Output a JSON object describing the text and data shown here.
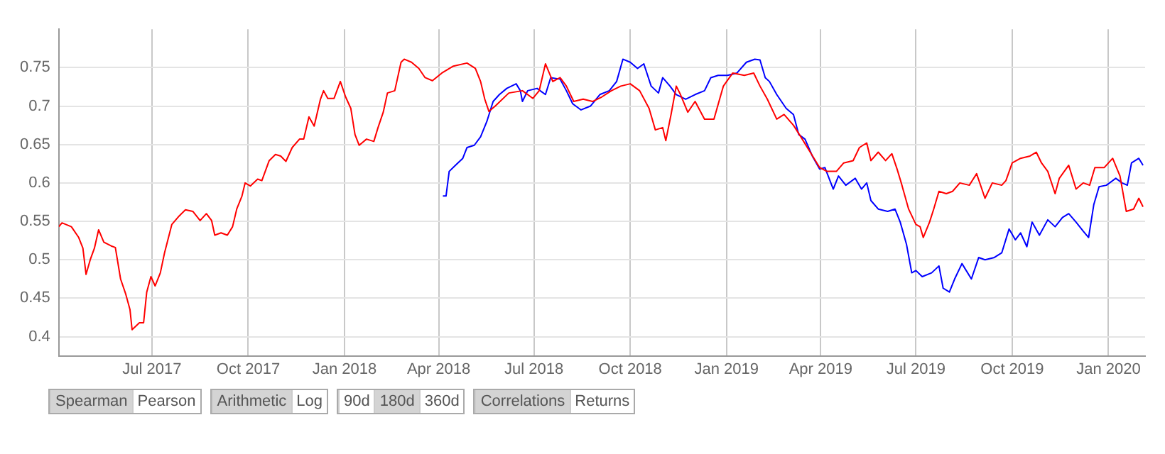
{
  "chart_data": {
    "type": "line",
    "xlim": [
      "2017-04-03",
      "2020-02-05"
    ],
    "ylim": [
      0.375,
      0.8
    ],
    "xticks": [
      {
        "value": "2017-07-01",
        "label": "Jul 2017"
      },
      {
        "value": "2017-10-01",
        "label": "Oct 2017"
      },
      {
        "value": "2018-01-01",
        "label": "Jan 2018"
      },
      {
        "value": "2018-04-01",
        "label": "Apr 2018"
      },
      {
        "value": "2018-07-01",
        "label": "Jul 2018"
      },
      {
        "value": "2018-10-01",
        "label": "Oct 2018"
      },
      {
        "value": "2019-01-01",
        "label": "Jan 2019"
      },
      {
        "value": "2019-04-01",
        "label": "Apr 2019"
      },
      {
        "value": "2019-07-01",
        "label": "Jul 2019"
      },
      {
        "value": "2019-10-01",
        "label": "Oct 2019"
      },
      {
        "value": "2020-01-01",
        "label": "Jan 2020"
      }
    ],
    "yticks": [
      0.4,
      0.45,
      0.5,
      0.55,
      0.6,
      0.65,
      0.7,
      0.75
    ],
    "grid": true,
    "legend": false,
    "marker": "none",
    "line_style": "solid",
    "annotations": [
      "Spearman",
      "Pearson",
      "Arithmetic",
      "Log",
      "90d",
      "180d",
      "360d",
      "Correlations",
      "Returns"
    ],
    "series": [
      {
        "color": "#ff0000",
        "x": [
          "2017-04-03",
          "2017-04-06",
          "2017-04-15",
          "2017-04-22",
          "2017-04-26",
          "2017-04-29",
          "2017-05-03",
          "2017-05-07",
          "2017-05-11",
          "2017-05-16",
          "2017-05-23",
          "2017-05-27",
          "2017-06-01",
          "2017-06-06",
          "2017-06-10",
          "2017-06-12",
          "2017-06-19",
          "2017-06-23",
          "2017-06-26",
          "2017-06-30",
          "2017-07-04",
          "2017-07-09",
          "2017-07-13",
          "2017-07-20",
          "2017-07-27",
          "2017-08-02",
          "2017-08-09",
          "2017-08-16",
          "2017-08-22",
          "2017-08-27",
          "2017-08-30",
          "2017-09-05",
          "2017-09-11",
          "2017-09-16",
          "2017-09-20",
          "2017-09-25",
          "2017-09-28",
          "2017-10-03",
          "2017-10-10",
          "2017-10-14",
          "2017-10-21",
          "2017-10-27",
          "2017-11-01",
          "2017-11-06",
          "2017-11-12",
          "2017-11-19",
          "2017-11-23",
          "2017-11-28",
          "2017-12-03",
          "2017-12-09",
          "2017-12-12",
          "2017-12-16",
          "2017-12-22",
          "2017-12-28",
          "2018-01-02",
          "2018-01-07",
          "2018-01-11",
          "2018-01-15",
          "2018-01-22",
          "2018-01-29",
          "2018-02-02",
          "2018-02-07",
          "2018-02-11",
          "2018-02-18",
          "2018-02-24",
          "2018-02-27",
          "2018-03-06",
          "2018-03-13",
          "2018-03-19",
          "2018-03-26",
          "2018-04-04",
          "2018-04-15",
          "2018-04-28",
          "2018-05-06",
          "2018-05-11",
          "2018-05-15",
          "2018-05-19",
          "2018-05-25",
          "2018-06-07",
          "2018-06-20",
          "2018-06-30",
          "2018-07-06",
          "2018-07-12",
          "2018-07-19",
          "2018-07-26",
          "2018-08-01",
          "2018-08-08",
          "2018-08-17",
          "2018-08-26",
          "2018-09-04",
          "2018-09-13",
          "2018-09-22",
          "2018-10-01",
          "2018-10-10",
          "2018-10-19",
          "2018-10-25",
          "2018-11-01",
          "2018-11-04",
          "2018-11-09",
          "2018-11-14",
          "2018-11-18",
          "2018-11-25",
          "2018-12-02",
          "2018-12-11",
          "2018-12-20",
          "2018-12-29",
          "2019-01-07",
          "2019-01-18",
          "2019-01-27",
          "2019-02-02",
          "2019-02-09",
          "2019-02-18",
          "2019-02-25",
          "2019-03-06",
          "2019-03-13",
          "2019-03-22",
          "2019-03-31",
          "2019-04-07",
          "2019-04-16",
          "2019-04-23",
          "2019-05-02",
          "2019-05-08",
          "2019-05-15",
          "2019-05-19",
          "2019-05-26",
          "2019-06-02",
          "2019-06-08",
          "2019-06-13",
          "2019-06-17",
          "2019-06-24",
          "2019-07-01",
          "2019-07-05",
          "2019-07-08",
          "2019-07-14",
          "2019-07-18",
          "2019-07-23",
          "2019-07-30",
          "2019-08-05",
          "2019-08-12",
          "2019-08-21",
          "2019-08-28",
          "2019-09-05",
          "2019-09-12",
          "2019-09-21",
          "2019-09-25",
          "2019-10-01",
          "2019-10-09",
          "2019-10-18",
          "2019-10-24",
          "2019-10-29",
          "2019-11-04",
          "2019-11-11",
          "2019-11-15",
          "2019-11-24",
          "2019-12-01",
          "2019-12-08",
          "2019-12-14",
          "2019-12-19",
          "2019-12-28",
          "2020-01-05",
          "2020-01-12",
          "2020-01-18",
          "2020-01-25",
          "2020-01-30",
          "2020-02-03"
        ],
        "values": [
          0.543,
          0.548,
          0.543,
          0.529,
          0.515,
          0.481,
          0.5,
          0.515,
          0.539,
          0.523,
          0.518,
          0.516,
          0.475,
          0.455,
          0.435,
          0.409,
          0.418,
          0.418,
          0.458,
          0.478,
          0.466,
          0.483,
          0.509,
          0.546,
          0.557,
          0.565,
          0.563,
          0.551,
          0.56,
          0.551,
          0.532,
          0.535,
          0.532,
          0.543,
          0.566,
          0.583,
          0.6,
          0.596,
          0.605,
          0.603,
          0.629,
          0.637,
          0.635,
          0.628,
          0.646,
          0.657,
          0.657,
          0.686,
          0.674,
          0.709,
          0.72,
          0.71,
          0.71,
          0.732,
          0.712,
          0.697,
          0.663,
          0.649,
          0.657,
          0.654,
          0.672,
          0.692,
          0.717,
          0.72,
          0.757,
          0.761,
          0.757,
          0.749,
          0.737,
          0.733,
          0.743,
          0.752,
          0.756,
          0.749,
          0.732,
          0.709,
          0.693,
          0.7,
          0.717,
          0.72,
          0.71,
          0.72,
          0.755,
          0.732,
          0.737,
          0.726,
          0.706,
          0.709,
          0.706,
          0.712,
          0.72,
          0.726,
          0.729,
          0.72,
          0.697,
          0.669,
          0.672,
          0.655,
          0.689,
          0.726,
          0.715,
          0.692,
          0.706,
          0.683,
          0.683,
          0.726,
          0.743,
          0.74,
          0.743,
          0.726,
          0.709,
          0.683,
          0.689,
          0.675,
          0.66,
          0.64,
          0.62,
          0.615,
          0.615,
          0.626,
          0.629,
          0.646,
          0.652,
          0.629,
          0.64,
          0.629,
          0.638,
          0.618,
          0.6,
          0.566,
          0.546,
          0.543,
          0.529,
          0.549,
          0.566,
          0.589,
          0.586,
          0.589,
          0.6,
          0.597,
          0.612,
          0.58,
          0.6,
          0.597,
          0.603,
          0.626,
          0.632,
          0.635,
          0.64,
          0.626,
          0.615,
          0.586,
          0.606,
          0.623,
          0.592,
          0.6,
          0.597,
          0.62,
          0.62,
          0.632,
          0.609,
          0.563,
          0.566,
          0.58,
          0.569
        ]
      },
      {
        "color": "#0000ff",
        "x": [
          "2018-04-05",
          "2018-04-08",
          "2018-04-11",
          "2018-04-17",
          "2018-04-24",
          "2018-04-28",
          "2018-05-05",
          "2018-05-11",
          "2018-05-17",
          "2018-05-23",
          "2018-05-29",
          "2018-06-05",
          "2018-06-14",
          "2018-06-18",
          "2018-06-20",
          "2018-06-25",
          "2018-07-04",
          "2018-07-12",
          "2018-07-17",
          "2018-07-26",
          "2018-08-01",
          "2018-08-07",
          "2018-08-15",
          "2018-08-24",
          "2018-09-02",
          "2018-09-11",
          "2018-09-18",
          "2018-09-24",
          "2018-10-01",
          "2018-10-08",
          "2018-10-14",
          "2018-10-21",
          "2018-10-28",
          "2018-11-01",
          "2018-11-08",
          "2018-11-14",
          "2018-11-23",
          "2018-12-02",
          "2018-12-11",
          "2018-12-17",
          "2018-12-24",
          "2019-01-02",
          "2019-01-11",
          "2019-01-20",
          "2019-01-28",
          "2019-02-02",
          "2019-02-07",
          "2019-02-11",
          "2019-02-18",
          "2019-02-27",
          "2019-03-06",
          "2019-03-11",
          "2019-03-17",
          "2019-03-24",
          "2019-03-31",
          "2019-04-05",
          "2019-04-13",
          "2019-04-18",
          "2019-04-25",
          "2019-05-04",
          "2019-05-10",
          "2019-05-15",
          "2019-05-19",
          "2019-05-26",
          "2019-06-04",
          "2019-06-11",
          "2019-06-16",
          "2019-06-22",
          "2019-06-27",
          "2019-07-01",
          "2019-07-07",
          "2019-07-16",
          "2019-07-23",
          "2019-07-27",
          "2019-08-02",
          "2019-08-07",
          "2019-08-14",
          "2019-08-23",
          "2019-08-30",
          "2019-09-05",
          "2019-09-14",
          "2019-09-21",
          "2019-09-28",
          "2019-10-04",
          "2019-10-09",
          "2019-10-15",
          "2019-10-20",
          "2019-10-27",
          "2019-11-04",
          "2019-11-11",
          "2019-11-18",
          "2019-11-24",
          "2019-12-01",
          "2019-12-08",
          "2019-12-13",
          "2019-12-18",
          "2019-12-23",
          "2019-12-30",
          "2020-01-08",
          "2020-01-14",
          "2020-01-19",
          "2020-01-23",
          "2020-01-30",
          "2020-02-03"
        ],
        "values": [
          0.583,
          0.583,
          0.615,
          0.623,
          0.632,
          0.646,
          0.649,
          0.66,
          0.68,
          0.706,
          0.715,
          0.723,
          0.729,
          0.72,
          0.706,
          0.72,
          0.723,
          0.715,
          0.737,
          0.735,
          0.72,
          0.703,
          0.695,
          0.7,
          0.715,
          0.72,
          0.732,
          0.761,
          0.757,
          0.749,
          0.755,
          0.726,
          0.717,
          0.737,
          0.726,
          0.715,
          0.709,
          0.715,
          0.72,
          0.737,
          0.74,
          0.74,
          0.743,
          0.757,
          0.761,
          0.76,
          0.737,
          0.732,
          0.715,
          0.697,
          0.689,
          0.663,
          0.657,
          0.635,
          0.618,
          0.62,
          0.592,
          0.609,
          0.597,
          0.606,
          0.592,
          0.6,
          0.577,
          0.566,
          0.563,
          0.566,
          0.549,
          0.52,
          0.483,
          0.486,
          0.478,
          0.483,
          0.492,
          0.463,
          0.458,
          0.475,
          0.495,
          0.475,
          0.503,
          0.5,
          0.503,
          0.509,
          0.54,
          0.526,
          0.535,
          0.517,
          0.549,
          0.532,
          0.552,
          0.543,
          0.555,
          0.56,
          0.549,
          0.537,
          0.529,
          0.572,
          0.595,
          0.597,
          0.606,
          0.6,
          0.597,
          0.626,
          0.632,
          0.623
        ]
      }
    ]
  }
}
